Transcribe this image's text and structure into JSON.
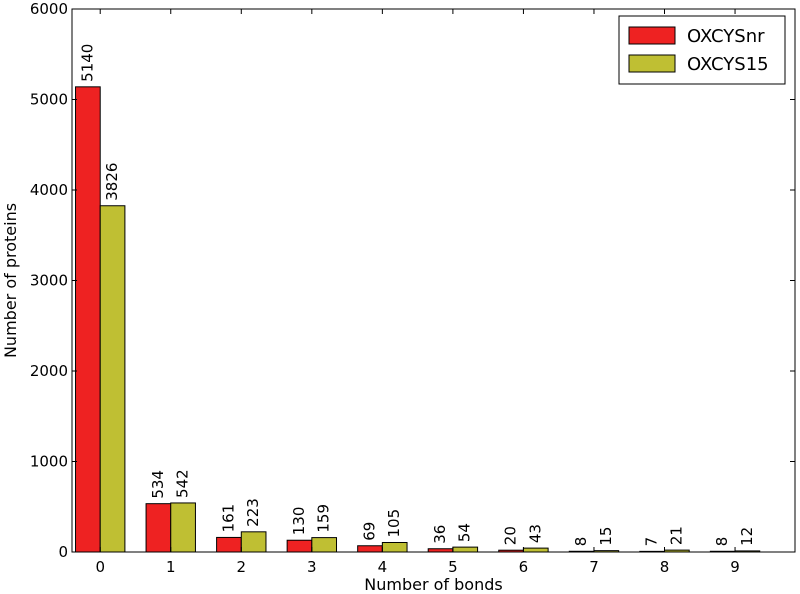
{
  "chart_data": {
    "type": "bar",
    "title": "",
    "xlabel": "Number of bonds",
    "ylabel": "Number of proteins",
    "categories": [
      "0",
      "1",
      "2",
      "3",
      "4",
      "5",
      "6",
      "7",
      "8",
      "9"
    ],
    "series": [
      {
        "name": "OXCYSnr",
        "color": "#ee2222",
        "values": [
          5140,
          534,
          161,
          130,
          69,
          36,
          20,
          8,
          7,
          8
        ]
      },
      {
        "name": "OXCYS15",
        "color": "#bfbf33",
        "values": [
          3826,
          542,
          223,
          159,
          105,
          54,
          43,
          15,
          21,
          12
        ]
      }
    ],
    "ylim": [
      0,
      6000
    ],
    "yticks": [
      "0",
      "1000",
      "2000",
      "3000",
      "4000",
      "5000",
      "6000"
    ],
    "data_labels": true,
    "legend_position": "top-right",
    "grid": false
  }
}
